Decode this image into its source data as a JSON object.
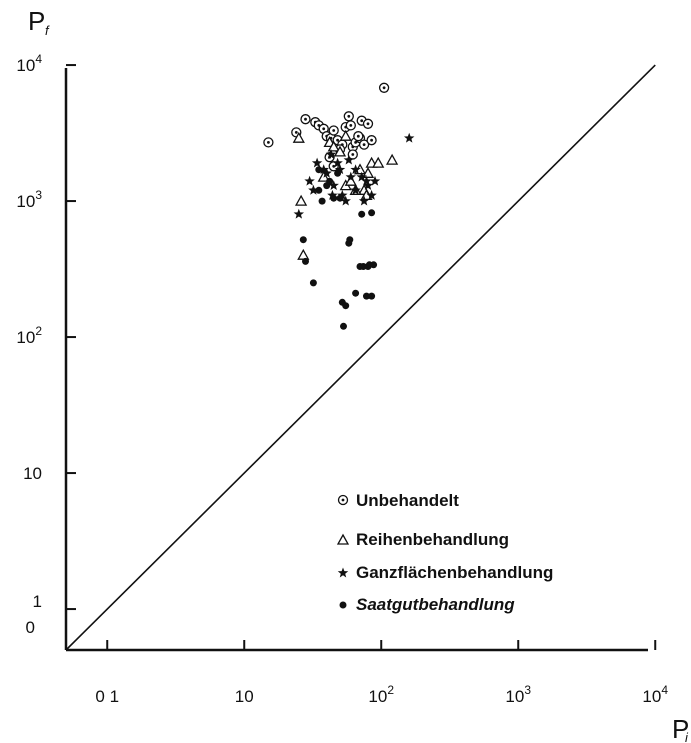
{
  "chart_data": {
    "type": "scatter",
    "x_scale": "log",
    "y_scale": "log",
    "xlim": [
      0.5,
      10000
    ],
    "ylim": [
      0.5,
      10000
    ],
    "grid": false,
    "xlabel": "P",
    "xlabel_sub": "i",
    "ylabel": "P",
    "ylabel_sub": "f",
    "x_ticks": [
      {
        "value": 1,
        "label": "0 1"
      },
      {
        "value": 10,
        "label": "10"
      },
      {
        "value": 100,
        "label": "10",
        "sup": "2"
      },
      {
        "value": 1000,
        "label": "10",
        "sup": "3"
      },
      {
        "value": 10000,
        "label": "10",
        "sup": "4"
      }
    ],
    "y_ticks": [
      {
        "value": 1,
        "label": "1",
        "label2": "0"
      },
      {
        "value": 10,
        "label": "10"
      },
      {
        "value": 100,
        "label": "10",
        "sup": "2"
      },
      {
        "value": 1000,
        "label": "10",
        "sup": "3"
      },
      {
        "value": 10000,
        "label": "10",
        "sup": "4"
      }
    ],
    "reference_line": {
      "from": [
        0.5,
        0.5
      ],
      "to": [
        10000,
        10000
      ]
    },
    "legend_position": "bottom-right",
    "series": [
      {
        "name": "Unbehandelt",
        "marker": "circle-dot",
        "points": [
          [
            15,
            2700
          ],
          [
            24,
            3200
          ],
          [
            28,
            4000
          ],
          [
            33,
            3800
          ],
          [
            35,
            3600
          ],
          [
            38,
            3400
          ],
          [
            40,
            3000
          ],
          [
            43,
            2900
          ],
          [
            45,
            3300
          ],
          [
            48,
            2800
          ],
          [
            52,
            2600
          ],
          [
            55,
            3500
          ],
          [
            58,
            4200
          ],
          [
            60,
            3600
          ],
          [
            62,
            2500
          ],
          [
            65,
            2700
          ],
          [
            70,
            2900
          ],
          [
            72,
            3900
          ],
          [
            75,
            2600
          ],
          [
            80,
            3700
          ],
          [
            85,
            2800
          ],
          [
            105,
            6800
          ],
          [
            42,
            2100
          ],
          [
            45,
            1800
          ],
          [
            50,
            2400
          ],
          [
            62,
            2200
          ],
          [
            68,
            3000
          ]
        ]
      },
      {
        "name": "Reihenbehandlung",
        "marker": "triangle",
        "points": [
          [
            25,
            2900
          ],
          [
            26,
            1000
          ],
          [
            27,
            400
          ],
          [
            38,
            1500
          ],
          [
            42,
            2700
          ],
          [
            45,
            2500
          ],
          [
            50,
            2300
          ],
          [
            55,
            1300
          ],
          [
            60,
            1400
          ],
          [
            70,
            1700
          ],
          [
            75,
            1200
          ],
          [
            78,
            1100
          ],
          [
            80,
            1600
          ],
          [
            85,
            1900
          ],
          [
            95,
            1900
          ],
          [
            120,
            2000
          ],
          [
            55,
            3000
          ],
          [
            65,
            1200
          ]
        ]
      },
      {
        "name": "Ganzflächenbehandlung",
        "marker": "star",
        "points": [
          [
            25,
            800
          ],
          [
            30,
            1400
          ],
          [
            32,
            1200
          ],
          [
            34,
            1900
          ],
          [
            38,
            1700
          ],
          [
            40,
            1600
          ],
          [
            43,
            2200
          ],
          [
            44,
            1100
          ],
          [
            45,
            1300
          ],
          [
            48,
            1900
          ],
          [
            52,
            1100
          ],
          [
            55,
            1000
          ],
          [
            58,
            2000
          ],
          [
            60,
            1500
          ],
          [
            65,
            1200
          ],
          [
            72,
            1500
          ],
          [
            75,
            1000
          ],
          [
            80,
            1300
          ],
          [
            85,
            1100
          ],
          [
            90,
            1400
          ],
          [
            160,
            2900
          ],
          [
            50,
            1700
          ],
          [
            65,
            1700
          ],
          [
            78,
            1400
          ]
        ]
      },
      {
        "name": "Saatgutbehandlung",
        "marker": "dot",
        "points": [
          [
            27,
            520
          ],
          [
            28,
            360
          ],
          [
            32,
            250
          ],
          [
            35,
            1200
          ],
          [
            37,
            1000
          ],
          [
            40,
            1300
          ],
          [
            45,
            1050
          ],
          [
            50,
            1050
          ],
          [
            52,
            180
          ],
          [
            53,
            120
          ],
          [
            55,
            170
          ],
          [
            58,
            490
          ],
          [
            59,
            520
          ],
          [
            65,
            210
          ],
          [
            70,
            330
          ],
          [
            72,
            800
          ],
          [
            74,
            330
          ],
          [
            78,
            200
          ],
          [
            80,
            330
          ],
          [
            82,
            340
          ],
          [
            85,
            200
          ],
          [
            85,
            820
          ],
          [
            88,
            340
          ],
          [
            35,
            1700
          ],
          [
            42,
            1400
          ],
          [
            48,
            1600
          ]
        ]
      }
    ]
  }
}
